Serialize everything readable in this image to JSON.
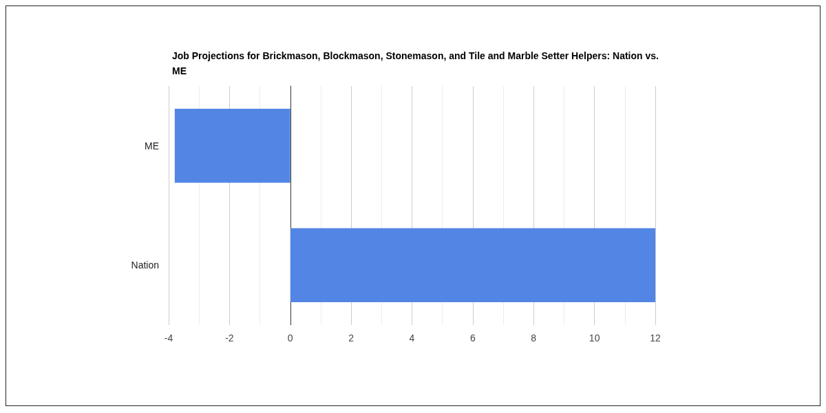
{
  "chart_data": {
    "type": "bar",
    "orientation": "horizontal",
    "title": "Job Projections for Brickmason, Blockmason, Stonemason, and Tile and Marble Setter Helpers: Nation vs. ME",
    "categories": [
      "ME",
      "Nation"
    ],
    "values": [
      -3.8,
      12
    ],
    "color": "#5386e4",
    "xlim": [
      -4,
      12
    ],
    "xticks": [
      -4,
      {
        "value": -3,
        "label": null
      },
      -2,
      {
        "value": -1,
        "label": null
      },
      0,
      {
        "value": 1,
        "label": null
      },
      2,
      {
        "value": 3,
        "label": null
      },
      4,
      {
        "value": 5,
        "label": null
      },
      6,
      {
        "value": 7,
        "label": null
      },
      8,
      {
        "value": 9,
        "label": null
      },
      10,
      {
        "value": 11,
        "label": null
      },
      12
    ],
    "grid": "x"
  }
}
